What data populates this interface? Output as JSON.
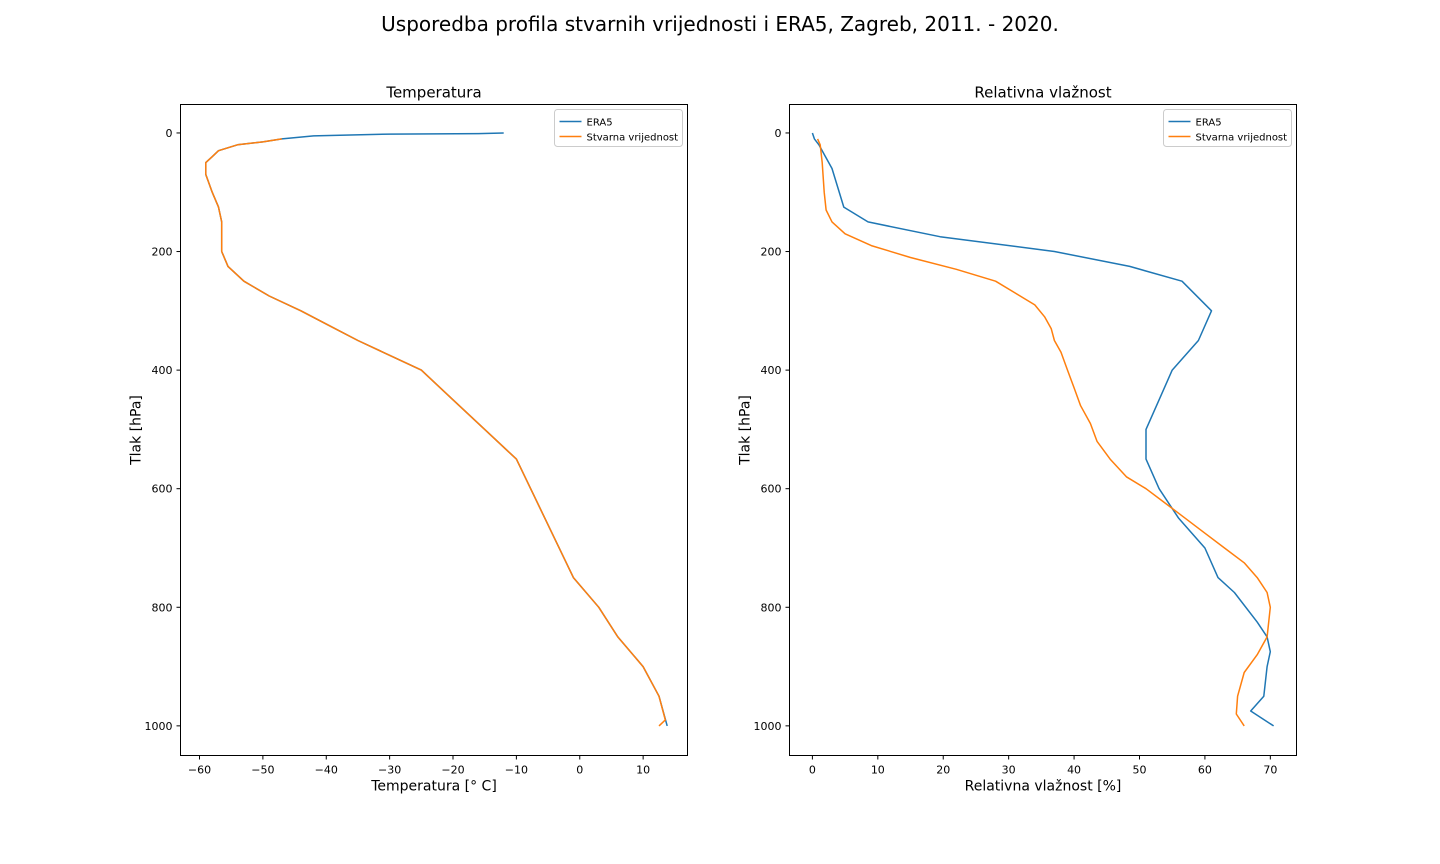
{
  "figure_title": "Usporedba profila stvarnih vrijednosti i ERA5, Zagreb, 2011. - 2020.",
  "colors": {
    "ERA5": "#1f77b4",
    "Stvarna vrijednost": "#ff7f0e"
  },
  "chart_data": [
    {
      "type": "line",
      "title": "Temperatura",
      "xlabel": "Temperatura [$^\\circ$ C]",
      "xlabel_display": "Temperatura [° C]",
      "ylabel": "Tlak [hPa]",
      "xlim": [
        -63,
        17
      ],
      "ylim": [
        1050,
        -48
      ],
      "y_inverted": true,
      "xticks": [
        -60,
        -50,
        -40,
        -30,
        -20,
        -10,
        0,
        10
      ],
      "yticks": [
        0,
        200,
        400,
        600,
        800,
        1000
      ],
      "legend_position": "top-right",
      "series": [
        {
          "name": "ERA5",
          "x": [
            -12,
            -16,
            -30,
            -42,
            -47,
            -50,
            -54,
            -57,
            -58,
            -59,
            -59,
            -58,
            -57,
            -56.5,
            -56.5,
            -56.5,
            -55.5,
            -53,
            -49,
            -44,
            -39.5,
            -35,
            -30,
            -25,
            -20,
            -15,
            -10,
            -5.5,
            -1,
            3,
            6,
            10,
            12.5,
            13.8
          ],
          "y": [
            0,
            1,
            2,
            5,
            10,
            15,
            20,
            30,
            40,
            50,
            70,
            100,
            125,
            150,
            175,
            200,
            225,
            250,
            275,
            300,
            325,
            350,
            375,
            400,
            450,
            500,
            550,
            650,
            750,
            800,
            850,
            900,
            950,
            1000
          ]
        },
        {
          "name": "Stvarna vrijednost",
          "x": [
            -47,
            -50,
            -54,
            -57,
            -58,
            -59,
            -59,
            -58,
            -57,
            -56.5,
            -56.5,
            -56.5,
            -55.5,
            -53,
            -49,
            -44,
            -39.5,
            -35,
            -30,
            -25,
            -20,
            -15,
            -10,
            -5.5,
            -1,
            3,
            6,
            10,
            12.5,
            13.5,
            12.5
          ],
          "y": [
            10,
            15,
            20,
            30,
            40,
            50,
            70,
            100,
            125,
            150,
            175,
            200,
            225,
            250,
            275,
            300,
            325,
            350,
            375,
            400,
            450,
            500,
            550,
            650,
            750,
            800,
            850,
            900,
            950,
            990,
            1000
          ]
        }
      ]
    },
    {
      "type": "line",
      "title": "Relativna vlažnost",
      "xlabel": "Relativna vlažnost [%]",
      "ylabel": "Tlak [hPa]",
      "xlim": [
        -3.5,
        74
      ],
      "ylim": [
        1050,
        -48
      ],
      "y_inverted": true,
      "xticks": [
        0,
        10,
        20,
        30,
        40,
        50,
        60,
        70
      ],
      "yticks": [
        0,
        200,
        400,
        600,
        800,
        1000
      ],
      "legend_position": "top-right",
      "series": [
        {
          "name": "ERA5",
          "x": [
            0,
            0.3,
            1,
            2,
            3,
            4.8,
            8.5,
            19.5,
            37,
            48.5,
            56.5,
            61,
            59,
            55,
            53,
            51,
            51,
            53,
            56,
            60,
            62,
            64.5,
            68,
            69.5,
            70,
            69.5,
            69,
            67,
            70.5
          ],
          "y": [
            0,
            10,
            20,
            40,
            60,
            125,
            150,
            175,
            200,
            225,
            250,
            300,
            350,
            400,
            450,
            500,
            550,
            600,
            650,
            700,
            750,
            775,
            825,
            850,
            875,
            900,
            950,
            975,
            1000
          ]
        },
        {
          "name": "Stvarna vrijednost",
          "x": [
            0.8,
            1.2,
            1.5,
            1.8,
            2.1,
            3,
            5,
            9,
            15,
            22,
            28,
            31,
            34,
            35.5,
            36.5,
            37,
            38,
            39,
            40,
            41,
            42.5,
            43.5,
            45.5,
            48,
            51,
            54,
            57,
            60,
            63,
            66,
            68,
            69.5,
            70,
            69.5,
            68,
            66,
            65,
            64.8,
            66
          ],
          "y": [
            10,
            20,
            50,
            100,
            130,
            150,
            170,
            190,
            210,
            230,
            250,
            270,
            290,
            310,
            330,
            350,
            370,
            400,
            430,
            460,
            490,
            520,
            550,
            580,
            600,
            625,
            650,
            675,
            700,
            725,
            750,
            775,
            800,
            850,
            880,
            910,
            950,
            980,
            1000
          ]
        }
      ]
    }
  ]
}
